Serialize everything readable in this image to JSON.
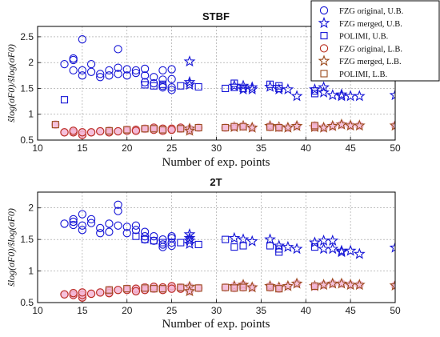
{
  "colors": {
    "blue": "#1414d6",
    "red": "#b82c1c",
    "brown": "#9b4a1c",
    "pink": "#f3b6d6",
    "grid": "#9a9a9a"
  },
  "legend": {
    "items": [
      {
        "label": "FZG original, U.B.",
        "marker": "circle",
        "color": "#1414d6"
      },
      {
        "label": "FZG merged, U.B.",
        "marker": "star",
        "color": "#1414d6"
      },
      {
        "label": "POLIMI, U.B.",
        "marker": "square",
        "color": "#1414d6"
      },
      {
        "label": "FZG original, L.B.",
        "marker": "circle",
        "color": "#b82c1c"
      },
      {
        "label": "FZG merged, L.B.",
        "marker": "star",
        "color": "#9b4a1c"
      },
      {
        "label": "POLIMI, L.B.",
        "marker": "square",
        "color": "#9b4a1c"
      }
    ]
  },
  "chart_data": [
    {
      "type": "scatter",
      "title": "STBF",
      "xlabel": "Number of exp. points",
      "ylabel": "ŝlog(σF0)/ŝlog(σF0)",
      "xlim": [
        10,
        50
      ],
      "ylim": [
        0.5,
        2.7
      ],
      "xticks": [
        "10",
        "15",
        "20",
        "25",
        "30",
        "35",
        "40",
        "45",
        "50"
      ],
      "yticks": [
        "0.5",
        "1",
        "1.5",
        "2",
        "2.5"
      ],
      "grid": "dashed",
      "series": [
        {
          "name": "FZG original, U.B.",
          "marker": "circle",
          "color": "#1414d6",
          "points": [
            [
              13,
              1.97
            ],
            [
              14,
              1.85
            ],
            [
              14,
              2.05
            ],
            [
              14,
              2.08
            ],
            [
              15,
              2.45
            ],
            [
              15,
              1.85
            ],
            [
              15,
              1.75
            ],
            [
              16,
              1.97
            ],
            [
              16,
              1.82
            ],
            [
              17,
              1.78
            ],
            [
              17,
              1.72
            ],
            [
              18,
              1.85
            ],
            [
              18,
              1.75
            ],
            [
              19,
              2.26
            ],
            [
              19,
              1.9
            ],
            [
              19,
              1.78
            ],
            [
              20,
              1.87
            ],
            [
              20,
              1.75
            ],
            [
              21,
              1.85
            ],
            [
              21,
              1.8
            ],
            [
              22,
              1.88
            ],
            [
              22,
              1.75
            ],
            [
              22,
              1.62
            ],
            [
              23,
              1.6
            ],
            [
              23,
              1.72
            ],
            [
              24,
              1.85
            ],
            [
              24,
              1.67
            ],
            [
              24,
              1.55
            ],
            [
              24,
              1.52
            ],
            [
              25,
              1.87
            ],
            [
              25,
              1.68
            ],
            [
              25,
              1.52
            ],
            [
              25,
              1.47
            ]
          ]
        },
        {
          "name": "FZG merged, U.B.",
          "marker": "star",
          "color": "#1414d6",
          "points": [
            [
              27,
              2.02
            ],
            [
              27,
              1.62
            ],
            [
              27,
              1.57
            ],
            [
              32,
              1.55
            ],
            [
              33,
              1.55
            ],
            [
              33,
              1.48
            ],
            [
              34,
              1.52
            ],
            [
              34,
              1.48
            ],
            [
              36,
              1.53
            ],
            [
              37,
              1.48
            ],
            [
              38,
              1.48
            ],
            [
              39,
              1.35
            ],
            [
              41,
              1.48
            ],
            [
              42,
              1.52
            ],
            [
              42,
              1.42
            ],
            [
              43,
              1.37
            ],
            [
              44,
              1.38
            ],
            [
              44,
              1.35
            ],
            [
              45,
              1.35
            ],
            [
              46,
              1.35
            ],
            [
              50,
              1.37
            ]
          ]
        },
        {
          "name": "POLIMI, U.B.",
          "marker": "square",
          "color": "#1414d6",
          "points": [
            [
              13,
              1.28
            ],
            [
              22,
              1.57
            ],
            [
              23,
              1.55
            ],
            [
              24,
              1.58
            ],
            [
              26,
              1.55
            ],
            [
              28,
              1.53
            ],
            [
              31,
              1.5
            ],
            [
              32,
              1.6
            ],
            [
              32,
              1.52
            ],
            [
              33,
              1.5
            ],
            [
              36,
              1.58
            ],
            [
              37,
              1.55
            ],
            [
              37,
              1.5
            ],
            [
              41,
              1.45
            ],
            [
              41,
              1.4
            ]
          ]
        },
        {
          "name": "FZG original, L.B.",
          "marker": "circle",
          "color": "#b82c1c",
          "points": [
            [
              13,
              0.65
            ],
            [
              14,
              0.65
            ],
            [
              14,
              0.68
            ],
            [
              15,
              0.6
            ],
            [
              15,
              0.65
            ],
            [
              16,
              0.65
            ],
            [
              17,
              0.67
            ],
            [
              18,
              0.68
            ],
            [
              18,
              0.65
            ],
            [
              19,
              0.67
            ],
            [
              20,
              0.68
            ],
            [
              21,
              0.7
            ],
            [
              21,
              0.68
            ],
            [
              22,
              0.72
            ],
            [
              23,
              0.7
            ],
            [
              23,
              0.74
            ],
            [
              24,
              0.72
            ],
            [
              24,
              0.68
            ],
            [
              25,
              0.72
            ],
            [
              25,
              0.7
            ],
            [
              26,
              0.74
            ]
          ]
        },
        {
          "name": "FZG merged, L.B.",
          "marker": "star",
          "color": "#9b4a1c",
          "points": [
            [
              27,
              0.72
            ],
            [
              27,
              0.68
            ],
            [
              32,
              0.75
            ],
            [
              33,
              0.77
            ],
            [
              34,
              0.74
            ],
            [
              36,
              0.77
            ],
            [
              37,
              0.75
            ],
            [
              38,
              0.74
            ],
            [
              39,
              0.77
            ],
            [
              41,
              0.75
            ],
            [
              42,
              0.74
            ],
            [
              43,
              0.77
            ],
            [
              44,
              0.8
            ],
            [
              45,
              0.78
            ],
            [
              46,
              0.78
            ],
            [
              50,
              0.78
            ]
          ]
        },
        {
          "name": "POLIMI, L.B.",
          "marker": "square",
          "color": "#9b4a1c",
          "points": [
            [
              12,
              0.8
            ],
            [
              18,
              0.68
            ],
            [
              20,
              0.7
            ],
            [
              22,
              0.72
            ],
            [
              23,
              0.72
            ],
            [
              24,
              0.7
            ],
            [
              26,
              0.72
            ],
            [
              28,
              0.74
            ],
            [
              31,
              0.74
            ],
            [
              32,
              0.76
            ],
            [
              33,
              0.76
            ],
            [
              36,
              0.75
            ],
            [
              37,
              0.74
            ],
            [
              41,
              0.75
            ],
            [
              41,
              0.78
            ]
          ]
        }
      ]
    },
    {
      "type": "scatter",
      "title": "2T",
      "xlabel": "Number of exp. points",
      "ylabel": "ŝlog(σF0)/ŝlog(σF0)",
      "xlim": [
        10,
        50
      ],
      "ylim": [
        0.5,
        2.25
      ],
      "xticks": [
        "10",
        "15",
        "20",
        "25",
        "30",
        "35",
        "40",
        "45",
        "50"
      ],
      "yticks": [
        "0.5",
        "1",
        "1.5",
        "2"
      ],
      "grid": "dashed",
      "series": [
        {
          "name": "FZG original, U.B.",
          "marker": "circle",
          "color": "#1414d6",
          "points": [
            [
              13,
              1.75
            ],
            [
              14,
              1.73
            ],
            [
              14,
              1.78
            ],
            [
              14,
              1.82
            ],
            [
              15,
              1.9
            ],
            [
              15,
              1.72
            ],
            [
              15,
              1.65
            ],
            [
              16,
              1.82
            ],
            [
              16,
              1.76
            ],
            [
              17,
              1.68
            ],
            [
              17,
              1.6
            ],
            [
              18,
              1.75
            ],
            [
              18,
              1.62
            ],
            [
              19,
              2.05
            ],
            [
              19,
              1.95
            ],
            [
              19,
              1.72
            ],
            [
              20,
              1.7
            ],
            [
              20,
              1.6
            ],
            [
              21,
              1.72
            ],
            [
              21,
              1.65
            ],
            [
              22,
              1.62
            ],
            [
              22,
              1.55
            ],
            [
              22,
              1.5
            ],
            [
              23,
              1.55
            ],
            [
              23,
              1.48
            ],
            [
              24,
              1.5
            ],
            [
              24,
              1.42
            ],
            [
              24,
              1.38
            ],
            [
              25,
              1.52
            ],
            [
              25,
              1.45
            ],
            [
              25,
              1.4
            ],
            [
              25,
              1.55
            ]
          ]
        },
        {
          "name": "FZG merged, U.B.",
          "marker": "star",
          "color": "#1414d6",
          "points": [
            [
              27,
              1.58
            ],
            [
              27,
              1.52
            ],
            [
              27,
              1.48
            ],
            [
              27,
              1.43
            ],
            [
              32,
              1.52
            ],
            [
              33,
              1.5
            ],
            [
              34,
              1.47
            ],
            [
              36,
              1.5
            ],
            [
              37,
              1.4
            ],
            [
              38,
              1.38
            ],
            [
              39,
              1.35
            ],
            [
              41,
              1.45
            ],
            [
              42,
              1.48
            ],
            [
              42,
              1.35
            ],
            [
              43,
              1.48
            ],
            [
              43,
              1.35
            ],
            [
              44,
              1.32
            ],
            [
              44,
              1.3
            ],
            [
              45,
              1.32
            ],
            [
              46,
              1.27
            ],
            [
              50,
              1.37
            ]
          ]
        },
        {
          "name": "POLIMI, U.B.",
          "marker": "square",
          "color": "#1414d6",
          "points": [
            [
              21,
              1.55
            ],
            [
              22,
              1.5
            ],
            [
              23,
              1.48
            ],
            [
              24,
              1.45
            ],
            [
              26,
              1.45
            ],
            [
              28,
              1.42
            ],
            [
              31,
              1.5
            ],
            [
              32,
              1.38
            ],
            [
              33,
              1.4
            ],
            [
              36,
              1.4
            ],
            [
              37,
              1.35
            ],
            [
              37,
              1.3
            ],
            [
              41,
              1.38
            ]
          ]
        },
        {
          "name": "FZG original, L.B.",
          "marker": "circle",
          "color": "#b82c1c",
          "points": [
            [
              13,
              0.63
            ],
            [
              14,
              0.62
            ],
            [
              14,
              0.65
            ],
            [
              15,
              0.58
            ],
            [
              15,
              0.62
            ],
            [
              15,
              0.66
            ],
            [
              16,
              0.64
            ],
            [
              17,
              0.66
            ],
            [
              18,
              0.68
            ],
            [
              18,
              0.65
            ],
            [
              19,
              0.7
            ],
            [
              20,
              0.7
            ],
            [
              21,
              0.72
            ],
            [
              21,
              0.68
            ],
            [
              22,
              0.74
            ],
            [
              22,
              0.7
            ],
            [
              23,
              0.72
            ],
            [
              23,
              0.75
            ],
            [
              24,
              0.74
            ],
            [
              24,
              0.7
            ],
            [
              25,
              0.76
            ],
            [
              25,
              0.72
            ],
            [
              26,
              0.72
            ]
          ]
        },
        {
          "name": "FZG merged, L.B.",
          "marker": "star",
          "color": "#9b4a1c",
          "points": [
            [
              27,
              0.75
            ],
            [
              27,
              0.68
            ],
            [
              32,
              0.76
            ],
            [
              33,
              0.78
            ],
            [
              34,
              0.74
            ],
            [
              36,
              0.76
            ],
            [
              37,
              0.74
            ],
            [
              38,
              0.76
            ],
            [
              39,
              0.8
            ],
            [
              41,
              0.76
            ],
            [
              42,
              0.78
            ],
            [
              43,
              0.8
            ],
            [
              44,
              0.8
            ],
            [
              45,
              0.78
            ],
            [
              46,
              0.78
            ],
            [
              50,
              0.77
            ]
          ]
        },
        {
          "name": "POLIMI, L.B.",
          "marker": "square",
          "color": "#9b4a1c",
          "points": [
            [
              18,
              0.7
            ],
            [
              20,
              0.72
            ],
            [
              22,
              0.73
            ],
            [
              23,
              0.72
            ],
            [
              24,
              0.72
            ],
            [
              26,
              0.74
            ],
            [
              28,
              0.73
            ],
            [
              31,
              0.74
            ],
            [
              32,
              0.73
            ],
            [
              33,
              0.74
            ],
            [
              36,
              0.74
            ],
            [
              37,
              0.72
            ],
            [
              41,
              0.76
            ]
          ]
        }
      ]
    }
  ]
}
